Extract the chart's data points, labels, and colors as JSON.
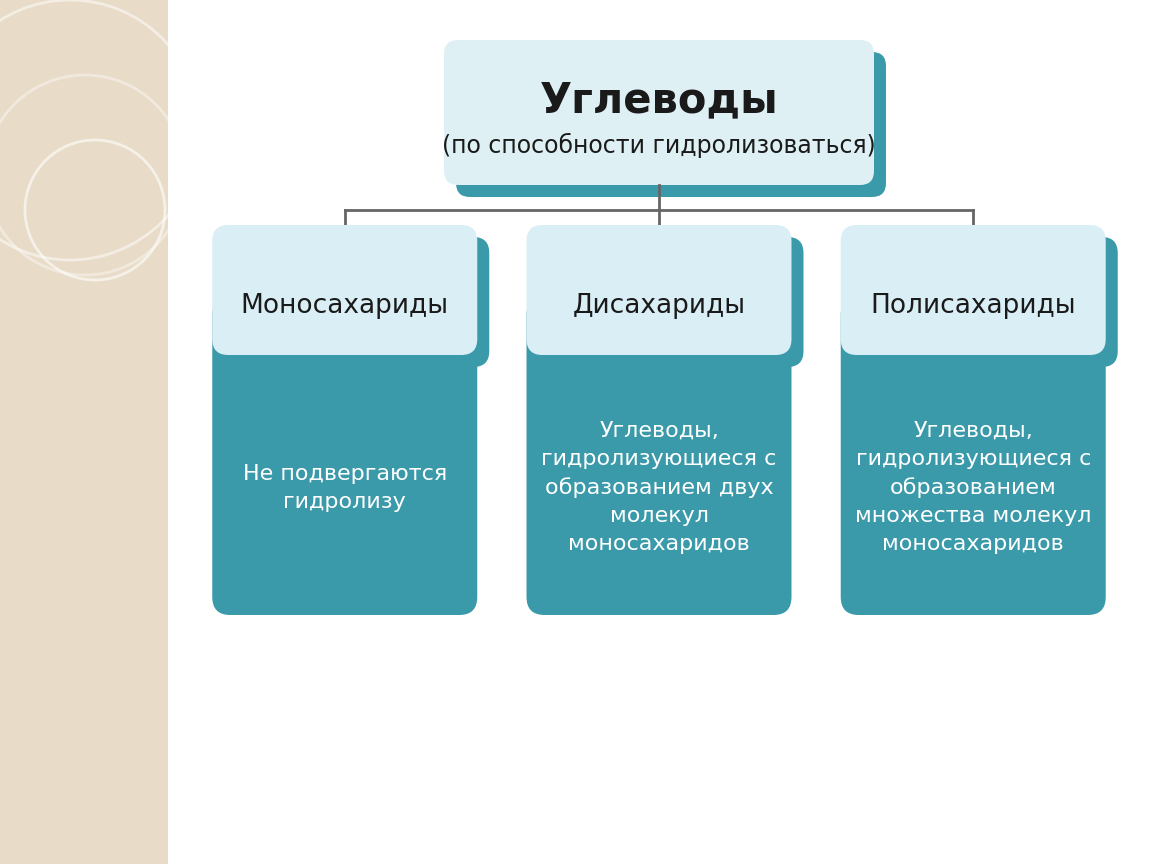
{
  "bg_color": "#ffffff",
  "sidebar_color": "#e8dcc8",
  "teal_dark": "#3a9aaa",
  "teal_body": "#3a9aaa",
  "header_light": "#daeef5",
  "title_box": {
    "title": "Углеводы",
    "subtitle": "(по способности гидролизоваться)"
  },
  "categories": [
    {
      "name": "Моносахариды",
      "body_text": "Не подвергаются\nгидролизу"
    },
    {
      "name": "Дисахариды",
      "body_text": "Углеводы,\nгидролизующиеся с\nобразованием двух\nмолекул\nмоносахаридов"
    },
    {
      "name": "Полисахариды",
      "body_text": "Углеводы,\nгидролизующиеся с\nобразованием\nмножества молекул\nмоносахаридов"
    }
  ]
}
